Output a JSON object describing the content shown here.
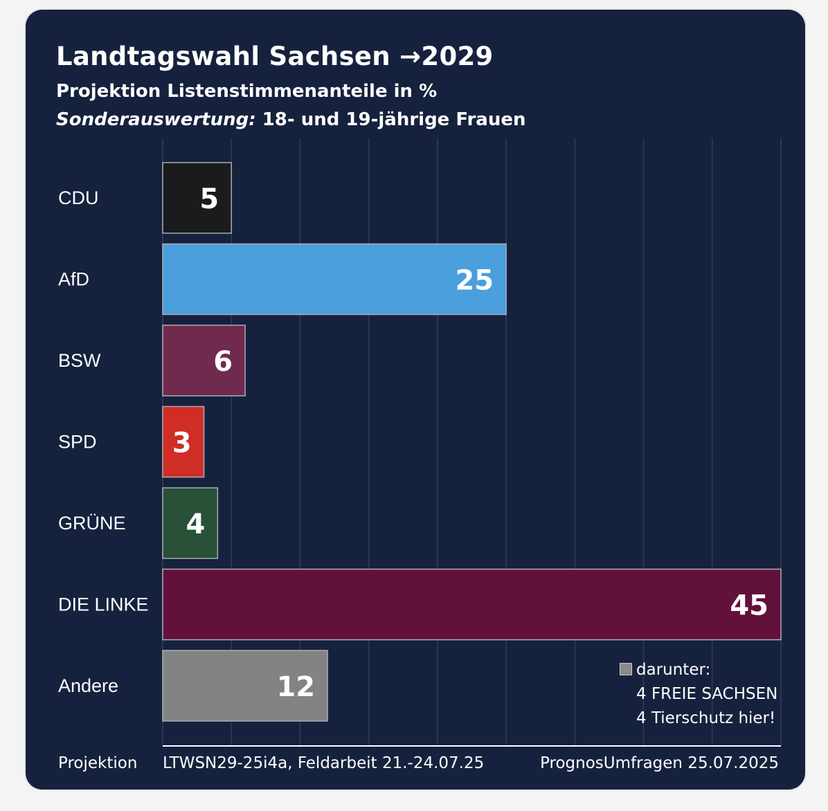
{
  "header": {
    "title": "Landtagswahl Sachsen →2029",
    "subtitle": "Projektion Listenstimmenanteile in %",
    "subtitle2_em": "Sonderauswertung:",
    "subtitle2_rest": " 18- und 19-jährige Frauen"
  },
  "chart_data": {
    "type": "bar",
    "orientation": "horizontal",
    "title": "Landtagswahl Sachsen →2029",
    "subtitle": "Projektion Listenstimmenanteile in %",
    "xlabel": "",
    "ylabel": "",
    "xlim": [
      0,
      45
    ],
    "grid": true,
    "categories": [
      "CDU",
      "AfD",
      "BSW",
      "SPD",
      "GRÜNE",
      "DIE LINKE",
      "Andere"
    ],
    "values": [
      5,
      25,
      6,
      3,
      4,
      45,
      12
    ],
    "colors": [
      "#1b1b1e",
      "#4a9fdc",
      "#702a4e",
      "#cf2d26",
      "#285138",
      "#62113a",
      "#838383"
    ]
  },
  "note": {
    "line1": "darunter:",
    "line2": "4 FREIE SACHSEN",
    "line3": "4 Tierschutz hier!"
  },
  "footer": {
    "left": "Projektion",
    "middle": "LTWSN29-25i4a, Feldarbeit 21.-24.07.25",
    "right": "PrognosUmfragen 25.07.2025"
  }
}
